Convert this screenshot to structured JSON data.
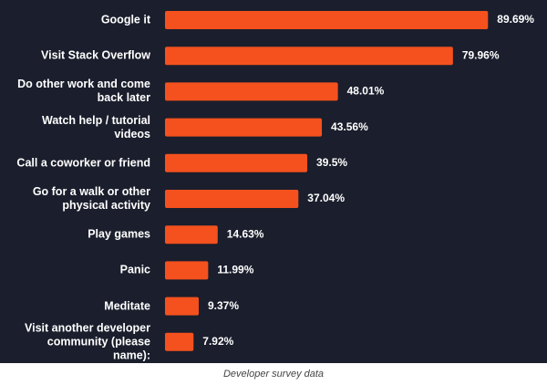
{
  "chart_data": {
    "type": "bar",
    "orientation": "horizontal",
    "caption": "Developer survey data",
    "color": "#f4511e",
    "categories": [
      "Google it",
      "Visit Stack Overflow",
      "Do other work and come back later",
      "Watch help / tutorial videos",
      "Call a coworker or friend",
      "Go for a walk or other physical activity",
      "Play games",
      "Panic",
      "Meditate",
      "Visit another developer community (please name):"
    ],
    "values": [
      89.69,
      79.96,
      48.01,
      43.56,
      39.5,
      37.04,
      14.63,
      11.99,
      9.37,
      7.92
    ],
    "value_labels": [
      "89.69%",
      "79.96%",
      "48.01%",
      "43.56%",
      "39.5%",
      "37.04%",
      "14.63%",
      "11.99%",
      "9.37%",
      "7.92%"
    ]
  }
}
